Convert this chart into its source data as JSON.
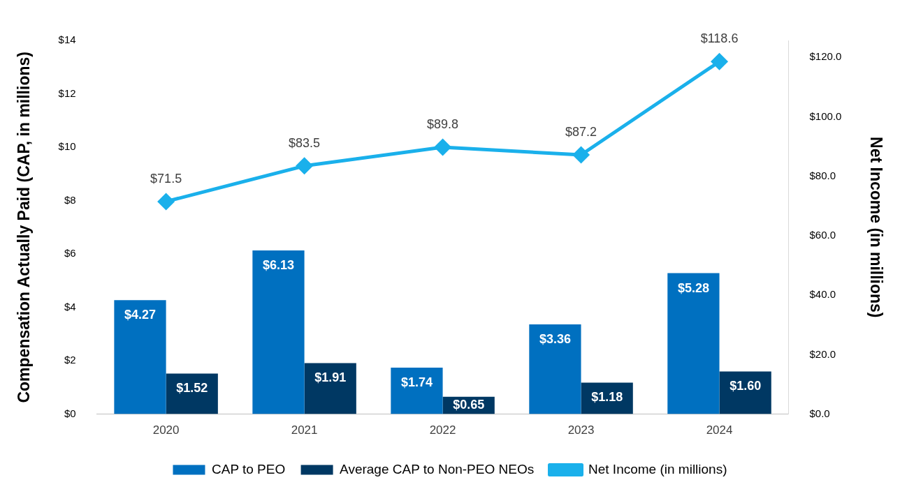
{
  "chart_data": {
    "type": "bar",
    "categories": [
      "2020",
      "2021",
      "2022",
      "2023",
      "2024"
    ],
    "ylabel": "Compensation Actually Paid (CAP, in millions)",
    "y2label": "Net Income (in millions)",
    "series": [
      {
        "name": "CAP to PEO",
        "color": "#0070c0",
        "values": [
          4.27,
          6.13,
          1.74,
          3.36,
          5.28
        ],
        "value_labels": [
          "$4.27",
          "$6.13",
          "$1.74",
          "$3.36",
          "$5.28"
        ]
      },
      {
        "name": "Average CAP to Non-PEO NEOs",
        "color": "#003863",
        "values": [
          1.52,
          1.91,
          0.65,
          1.18,
          1.6
        ],
        "value_labels": [
          "$1.52",
          "$1.91",
          "$0.65",
          "$1.18",
          "$1.60"
        ]
      },
      {
        "name": "Net Income (in millions)",
        "type": "line",
        "axis": "y2",
        "color": "#1ab0eb",
        "marker": "diamond",
        "values": [
          71.5,
          83.5,
          89.8,
          87.2,
          118.6
        ],
        "value_labels": [
          "$71.5",
          "$83.5",
          "$89.8",
          "$87.2",
          "$118.6"
        ]
      }
    ],
    "ylim": [
      0,
      14
    ],
    "yticks": [
      {
        "value": 0,
        "label": "$0"
      },
      {
        "value": 2,
        "label": "$2"
      },
      {
        "value": 4,
        "label": "$4"
      },
      {
        "value": 6,
        "label": "$6"
      },
      {
        "value": 8,
        "label": "$8"
      },
      {
        "value": 10,
        "label": "$10"
      },
      {
        "value": 12,
        "label": "$12"
      },
      {
        "value": 14,
        "label": "$14"
      }
    ],
    "y2lim": [
      0,
      125.7
    ],
    "y2ticks": [
      {
        "value": 0,
        "label": "$0.0"
      },
      {
        "value": 20,
        "label": "$20.0"
      },
      {
        "value": 40,
        "label": "$40.0"
      },
      {
        "value": 60,
        "label": "$60.0"
      },
      {
        "value": 80,
        "label": "$80.0"
      },
      {
        "value": 100,
        "label": "$100.0"
      },
      {
        "value": 120,
        "label": "$120.0"
      }
    ],
    "grid": false,
    "legend": "bottom"
  }
}
